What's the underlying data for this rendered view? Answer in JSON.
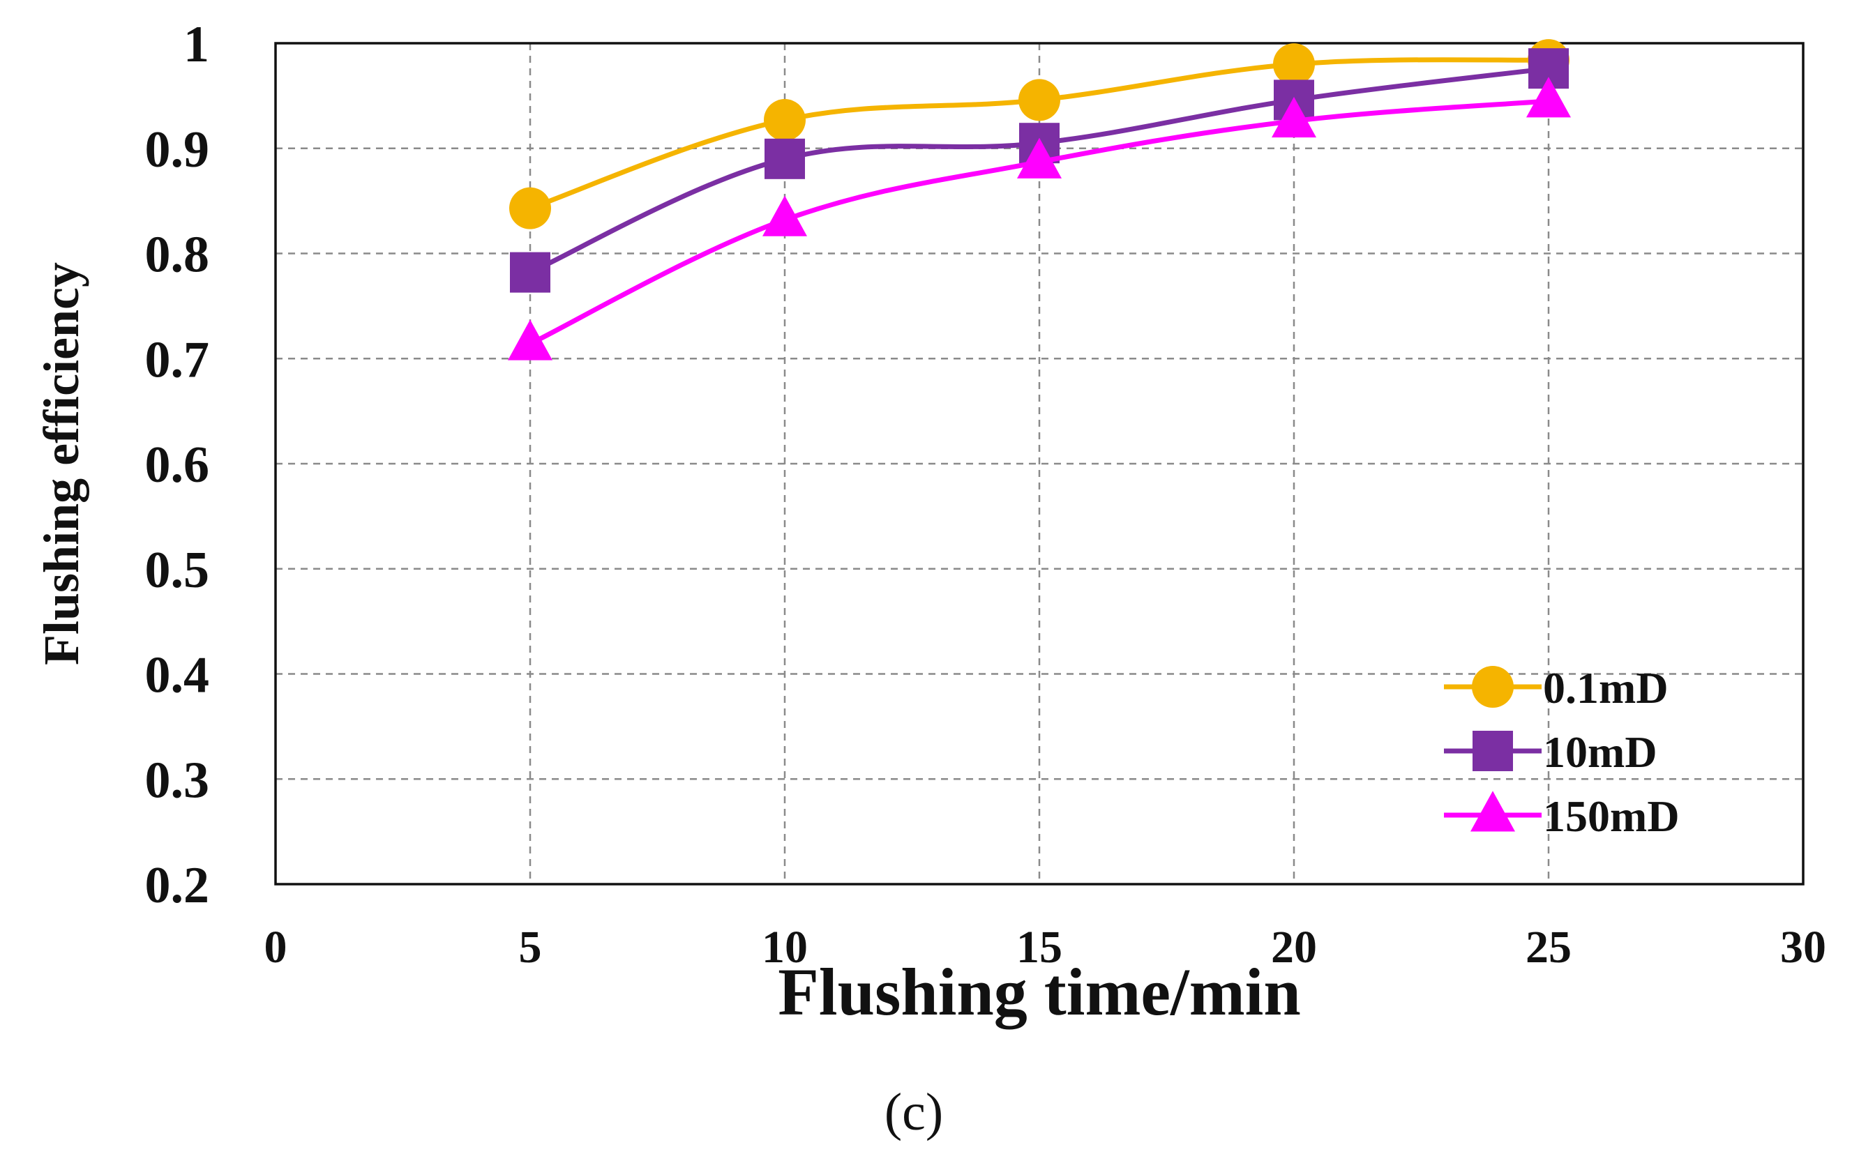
{
  "chart_data": {
    "type": "line",
    "xlabel": "Flushing time/min",
    "ylabel": "Flushing efficiency",
    "caption": "(c)",
    "xlim": [
      0,
      30
    ],
    "ylim": [
      0.2,
      1.0
    ],
    "xticks": [
      0,
      5,
      10,
      15,
      20,
      25,
      30
    ],
    "xtick_labels": [
      "0",
      "5",
      "10",
      "15",
      "20",
      "25",
      "30"
    ],
    "yticks": [
      0.2,
      0.3,
      0.4,
      0.5,
      0.6,
      0.7,
      0.8,
      0.9,
      1.0
    ],
    "ytick_labels": [
      "0.2",
      "0.3",
      "0.4",
      "0.5",
      "0.6",
      "0.7",
      "0.8",
      "0.9",
      "1"
    ],
    "grid": true,
    "legend_position": "bottom-right",
    "x": [
      5,
      10,
      15,
      20,
      25
    ],
    "series": [
      {
        "name": "0.1mD",
        "values": [
          0.843,
          0.927,
          0.946,
          0.98,
          0.984
        ],
        "color": "#f5b400",
        "marker": "circle"
      },
      {
        "name": "10mD",
        "values": [
          0.782,
          0.89,
          0.905,
          0.946,
          0.976
        ],
        "color": "#7b2fa3",
        "marker": "square"
      },
      {
        "name": "150mD",
        "values": [
          0.714,
          0.832,
          0.887,
          0.926,
          0.945
        ],
        "color": "#ff00ff",
        "marker": "triangle"
      }
    ]
  }
}
